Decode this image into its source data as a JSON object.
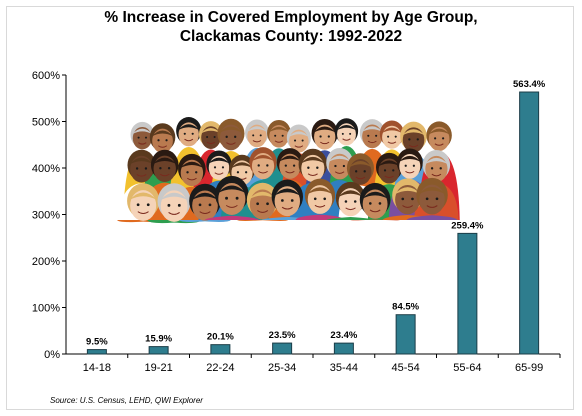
{
  "chart_data": {
    "type": "bar",
    "title": "% Increase in Covered Employment by Age Group,",
    "subtitle": "Clackamas County: 1992-2022",
    "xlabel": "",
    "ylabel": "",
    "categories": [
      "14-18",
      "19-21",
      "22-24",
      "25-34",
      "35-44",
      "45-54",
      "55-64",
      "65-99"
    ],
    "values": [
      9.5,
      15.9,
      20.1,
      23.5,
      23.4,
      84.5,
      259.4,
      563.4
    ],
    "data_labels": [
      "9.5%",
      "15.9%",
      "20.1%",
      "23.5%",
      "23.4%",
      "84.5%",
      "259.4%",
      "563.4%"
    ],
    "ylim": [
      0,
      600
    ],
    "yticks": [
      0,
      100,
      200,
      300,
      400,
      500,
      600
    ],
    "ytick_labels": [
      "0%",
      "100%",
      "200%",
      "300%",
      "400%",
      "500%",
      "600%"
    ],
    "grid": false,
    "bar_color": "#2e7d8e",
    "bar_edge_color": "#1b3d47"
  },
  "source": "Source: U.S. Census, LEHD, QWI Explorer"
}
